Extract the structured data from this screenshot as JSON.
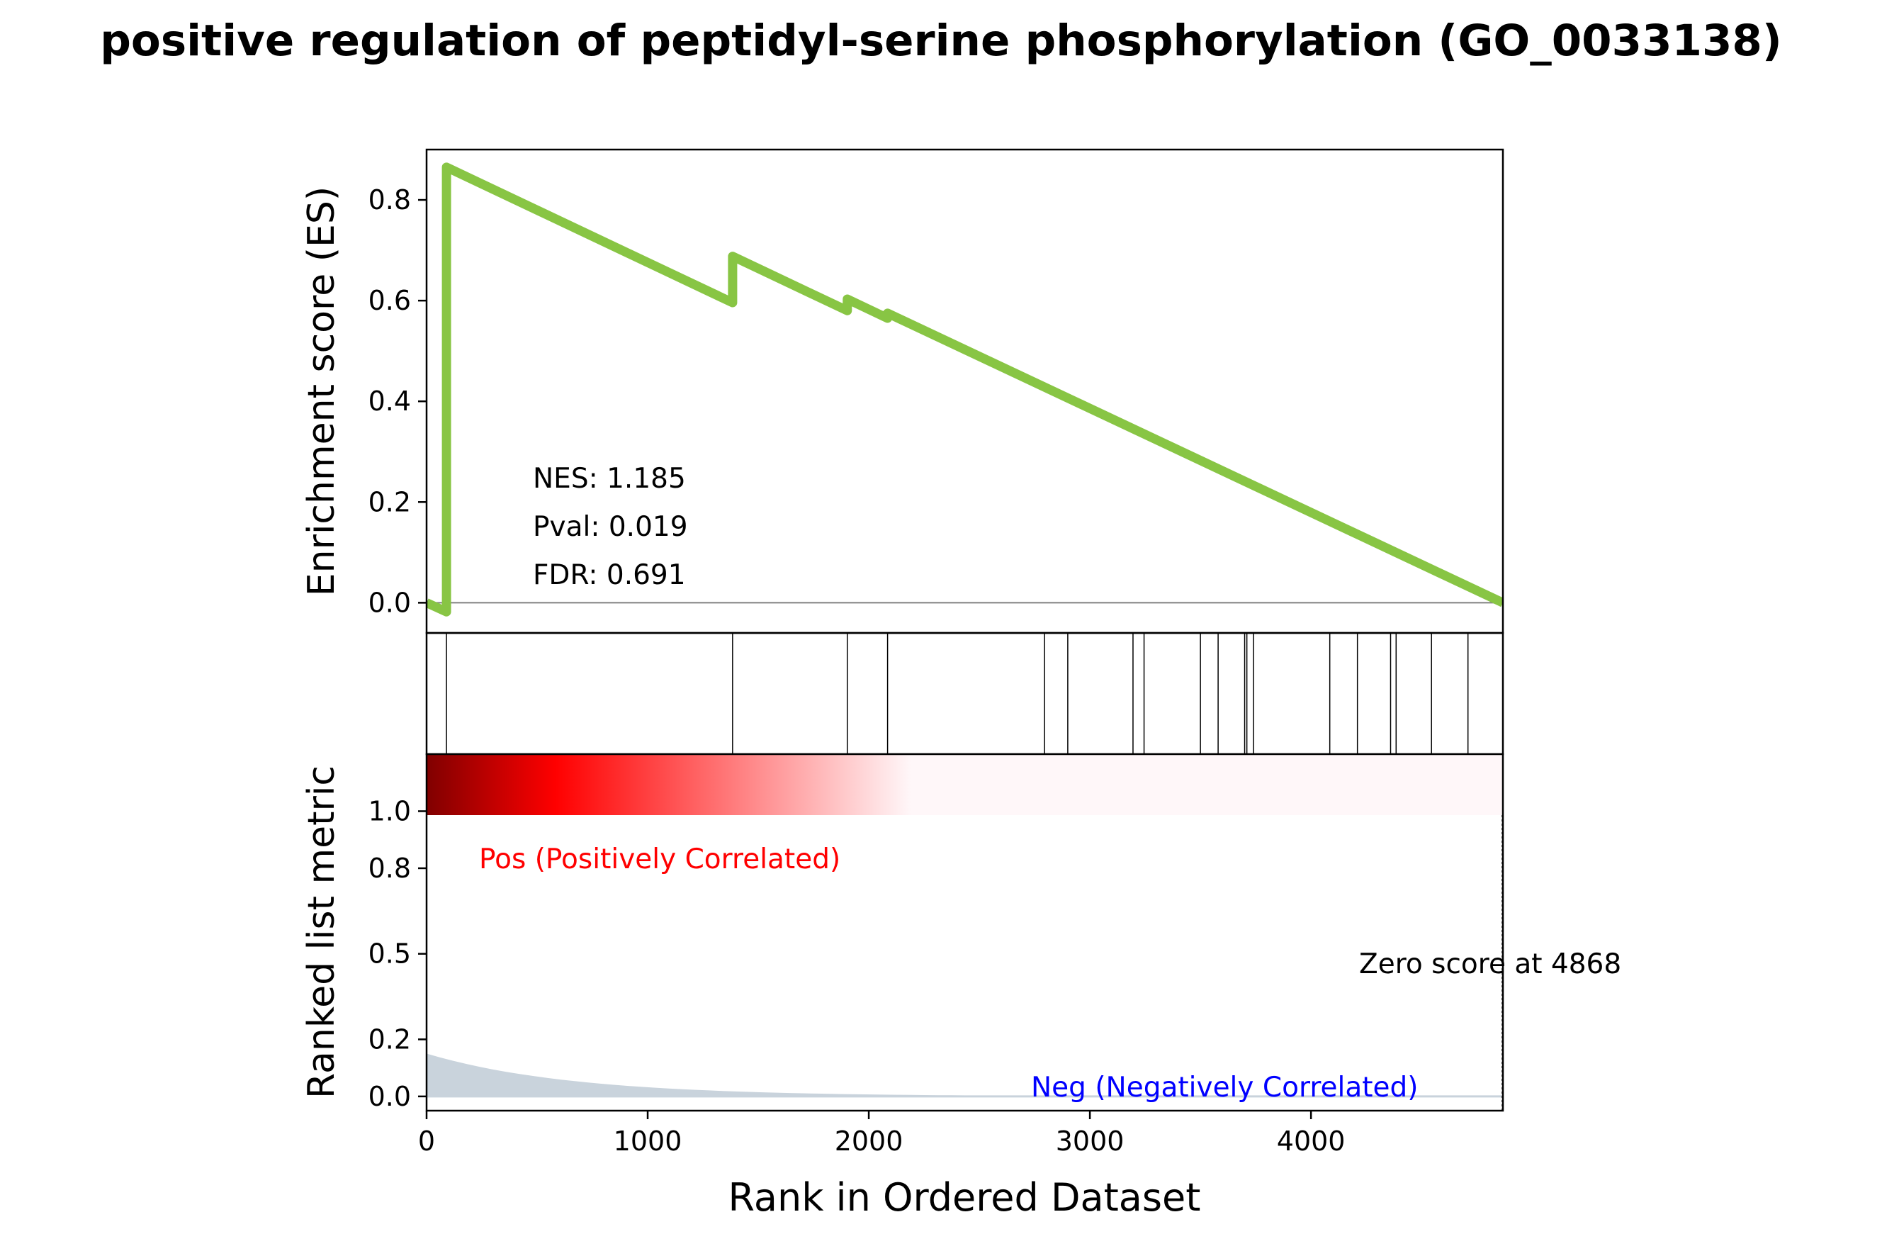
{
  "chart_data": {
    "type": "line",
    "title": "positive regulation of peptidyl-serine phosphorylation (GO_0033138)",
    "xlabel": "Rank in Ordered Dataset",
    "xlim": [
      0,
      4868
    ],
    "x_ticks": [
      0,
      1000,
      2000,
      3000,
      4000
    ],
    "colors": {
      "es_line": "#88c544",
      "zero_line": "#808080",
      "pos_text": "#ff0000",
      "neg_text": "#0000ff",
      "metric_fill": "#c9d3dc",
      "heat_dark": "#800000",
      "heat_mid": "#ff0000",
      "heat_light": "#fff7f9"
    },
    "es_panel": {
      "ylabel": "Enrichment score (ES)",
      "ylim": [
        -0.06,
        0.9
      ],
      "y_ticks": [
        0.0,
        0.2,
        0.4,
        0.6,
        0.8
      ],
      "series": [
        {
          "x": [
            0,
            90,
            90,
            1384,
            1384,
            1903,
            1903,
            2085,
            2085,
            4868
          ],
          "y": [
            0.0,
            -0.018,
            0.865,
            0.596,
            0.688,
            0.58,
            0.603,
            0.565,
            0.575,
            0.0
          ]
        }
      ],
      "stats": {
        "nes": "NES: 1.185",
        "pval": "Pval: 0.019",
        "fdr": "FDR: 0.691"
      }
    },
    "hits": [
      90,
      1384,
      1903,
      2085,
      2795,
      2900,
      3195,
      3245,
      3500,
      3580,
      3700,
      3710,
      3740,
      4085,
      4210,
      4360,
      4385,
      4545,
      4710
    ],
    "metric_panel": {
      "ylabel": "Ranked list metric",
      "ylim": [
        -0.05,
        1.2
      ],
      "y_ticks": [
        0.0,
        0.2,
        0.5,
        0.8,
        1.0
      ],
      "metric_start": 0.15,
      "pos_label": "Pos (Positively Correlated)",
      "neg_label": "Neg (Negatively Correlated)",
      "zero_score_label": "Zero score at 4868",
      "zero_score_at": 4868
    }
  }
}
